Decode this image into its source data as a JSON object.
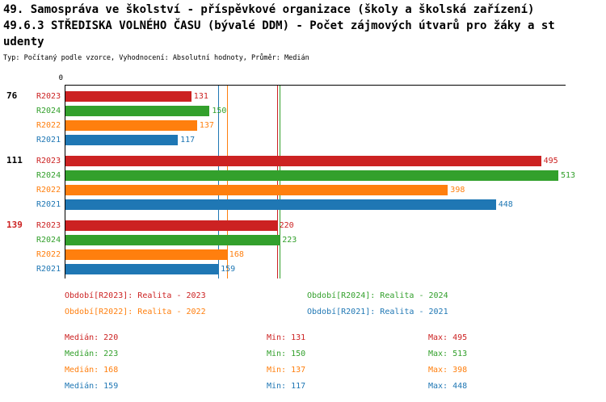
{
  "header": {
    "title_line1": "49. Samospráva ve školství - příspěvkové organizace (školy a školská zařízení)",
    "title_line2": "49.6.3 STŘEDISKA VOLNÉHO ČASU (bývalé DDM) - Počet zájmových útvarů pro žáky a st",
    "title_line3": "udenty",
    "subtitle": "Typ: Počítaný podle vzorce, Vyhodnocení: Absolutní hodnoty, Průměr: Medián"
  },
  "colors": {
    "R2023": "#cc2222",
    "R2024": "#33a02c",
    "R2022": "#ff7f0e",
    "R2021": "#1f77b4",
    "axis": "#000000"
  },
  "chart_data": {
    "type": "bar",
    "orientation": "horizontal",
    "title": "49.6.3 STŘEDISKA VOLNÉHO ČASU (bývalé DDM) - Počet zájmových útvarů pro žáky a studenty",
    "value_axis_start_label": "0",
    "axis_max": 513,
    "grid": false,
    "series_order": [
      "R2023",
      "R2024",
      "R2022",
      "R2021"
    ],
    "groups": [
      {
        "label": "76",
        "label_color": "#000000",
        "values": {
          "R2023": 131,
          "R2024": 150,
          "R2022": 137,
          "R2021": 117
        }
      },
      {
        "label": "111",
        "label_color": "#000000",
        "values": {
          "R2023": 495,
          "R2024": 513,
          "R2022": 398,
          "R2021": 448
        }
      },
      {
        "label": "139",
        "label_color": "#cc2222",
        "values": {
          "R2023": 220,
          "R2024": 223,
          "R2022": 168,
          "R2021": 159
        }
      }
    ],
    "median_lines": {
      "R2023": 220,
      "R2024": 223,
      "R2022": 168,
      "R2021": 159
    }
  },
  "legend": [
    {
      "series": "R2023",
      "label": "Období[R2023]: Realita - 2023"
    },
    {
      "series": "R2024",
      "label": "Období[R2024]: Realita - 2024"
    },
    {
      "series": "R2022",
      "label": "Období[R2022]: Realita - 2022"
    },
    {
      "series": "R2021",
      "label": "Období[R2021]: Realita - 2021"
    }
  ],
  "stats": [
    {
      "series": "R2023",
      "median": "Medián: 220",
      "min": "Min: 131",
      "max": "Max: 495"
    },
    {
      "series": "R2024",
      "median": "Medián: 223",
      "min": "Min: 150",
      "max": "Max: 513"
    },
    {
      "series": "R2022",
      "median": "Medián: 168",
      "min": "Min: 137",
      "max": "Max: 398"
    },
    {
      "series": "R2021",
      "median": "Medián: 159",
      "min": "Min: 117",
      "max": "Max: 448"
    }
  ]
}
